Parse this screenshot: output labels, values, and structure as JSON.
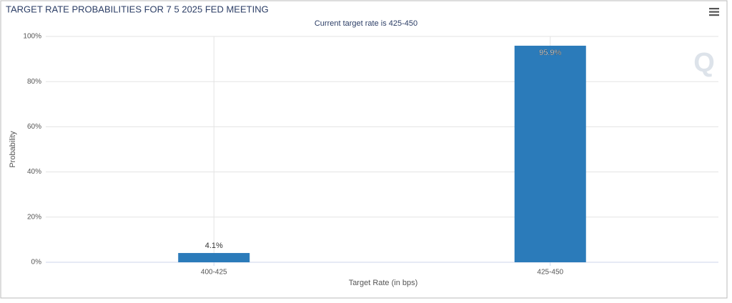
{
  "chart_data": {
    "type": "bar",
    "title": "TARGET RATE PROBABILITIES FOR 7 5 2025 FED MEETING",
    "subtitle": "Current target rate is 425-450",
    "y_label": "Probability",
    "x_label": "Target Rate (in bps)",
    "categories": [
      "400-425",
      "425-450"
    ],
    "values": [
      4.1,
      95.9
    ],
    "value_labels": [
      "4.1%",
      "95.9%"
    ],
    "color": "#2b7bba",
    "ylim": [
      0,
      100
    ],
    "yticks": [
      {
        "value": 0,
        "label": "0%"
      },
      {
        "value": 20,
        "label": "20%"
      },
      {
        "value": 40,
        "label": "40%"
      },
      {
        "value": 60,
        "label": "60%"
      },
      {
        "value": 80,
        "label": "80%"
      },
      {
        "value": 100,
        "label": "100%"
      }
    ],
    "grid": true
  }
}
